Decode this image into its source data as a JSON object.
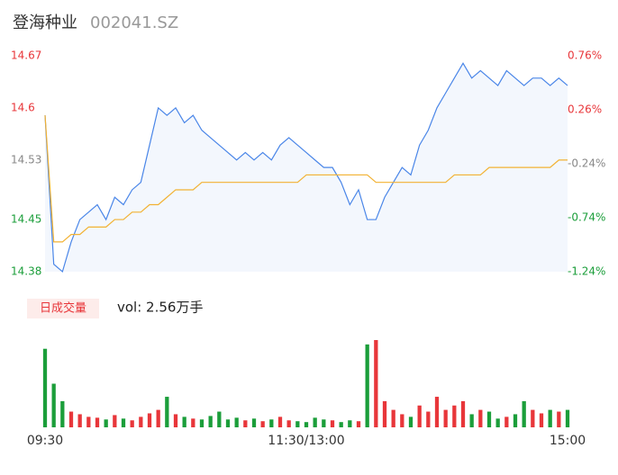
{
  "chart_data": {
    "type": "intraday",
    "title": "登海种业",
    "subtitle": "002041.SZ",
    "x": [
      0,
      1,
      2,
      3,
      4,
      5,
      6,
      7,
      8,
      9,
      10,
      11,
      12,
      13,
      14,
      15,
      16,
      17,
      18,
      19,
      20,
      21,
      22,
      23,
      24,
      25,
      26,
      27,
      28,
      29,
      30,
      31,
      32,
      33,
      34,
      35,
      36,
      37,
      38,
      39,
      40,
      41,
      42,
      43,
      44,
      45,
      46,
      47,
      48,
      49,
      50,
      51,
      52,
      53,
      54,
      55,
      56,
      57,
      58,
      59,
      60
    ],
    "xlim": [
      0,
      60
    ],
    "xticks": [
      {
        "value": 0,
        "label": "09:30"
      },
      {
        "value": 30,
        "label": "11:30/13:00"
      },
      {
        "value": 60,
        "label": "15:00"
      }
    ],
    "ylim": [
      14.38,
      14.67
    ],
    "yticks": [
      14.67,
      14.6,
      14.53,
      14.45,
      14.38
    ],
    "ytick_colors": [
      "#e8363a",
      "#e8363a",
      "#888888",
      "#1b9e3a",
      "#1b9e3a"
    ],
    "y2lim": [
      -1.24,
      0.76
    ],
    "y2ticks": [
      {
        "value": 0.76,
        "label": "0.76%"
      },
      {
        "value": 0.26,
        "label": "0.26%"
      },
      {
        "value": -0.24,
        "label": "-0.24%"
      },
      {
        "value": -0.74,
        "label": "-0.74%"
      },
      {
        "value": -1.24,
        "label": "-1.24%"
      }
    ],
    "series": [
      {
        "name": "price",
        "color": "#4a86e8",
        "values": [
          14.59,
          14.39,
          14.38,
          14.42,
          14.45,
          14.46,
          14.47,
          14.45,
          14.48,
          14.47,
          14.49,
          14.5,
          14.55,
          14.6,
          14.59,
          14.6,
          14.58,
          14.59,
          14.57,
          14.56,
          14.55,
          14.54,
          14.53,
          14.54,
          14.53,
          14.54,
          14.53,
          14.55,
          14.56,
          14.55,
          14.54,
          14.53,
          14.52,
          14.52,
          14.5,
          14.47,
          14.49,
          14.45,
          14.45,
          14.48,
          14.5,
          14.52,
          14.51,
          14.55,
          14.57,
          14.6,
          14.62,
          14.64,
          14.66,
          14.64,
          14.65,
          14.64,
          14.63,
          14.65,
          14.64,
          14.63,
          14.64,
          14.64,
          14.63,
          14.64,
          14.63
        ]
      },
      {
        "name": "average",
        "color": "#f2b233",
        "values": [
          14.59,
          14.42,
          14.42,
          14.43,
          14.43,
          14.44,
          14.44,
          14.44,
          14.45,
          14.45,
          14.46,
          14.46,
          14.47,
          14.47,
          14.48,
          14.49,
          14.49,
          14.49,
          14.5,
          14.5,
          14.5,
          14.5,
          14.5,
          14.5,
          14.5,
          14.5,
          14.5,
          14.5,
          14.5,
          14.5,
          14.51,
          14.51,
          14.51,
          14.51,
          14.51,
          14.51,
          14.51,
          14.51,
          14.5,
          14.5,
          14.5,
          14.5,
          14.5,
          14.5,
          14.5,
          14.5,
          14.5,
          14.51,
          14.51,
          14.51,
          14.51,
          14.52,
          14.52,
          14.52,
          14.52,
          14.52,
          14.52,
          14.52,
          14.52,
          14.53,
          14.53
        ]
      }
    ],
    "volume_label": "日成交量",
    "volume_text": "vol: 2.56万手",
    "volume": [
      900,
      500,
      300,
      180,
      150,
      120,
      110,
      90,
      140,
      100,
      80,
      120,
      160,
      200,
      350,
      150,
      120,
      100,
      90,
      130,
      180,
      90,
      110,
      80,
      100,
      70,
      90,
      120,
      80,
      70,
      60,
      110,
      90,
      80,
      60,
      80,
      70,
      950,
      1000,
      300,
      200,
      150,
      120,
      250,
      180,
      350,
      200,
      250,
      300,
      150,
      200,
      180,
      100,
      120,
      150,
      300,
      200,
      160,
      200,
      180,
      200
    ],
    "up_color": "#e8363a",
    "down_color": "#1b9e3a"
  }
}
